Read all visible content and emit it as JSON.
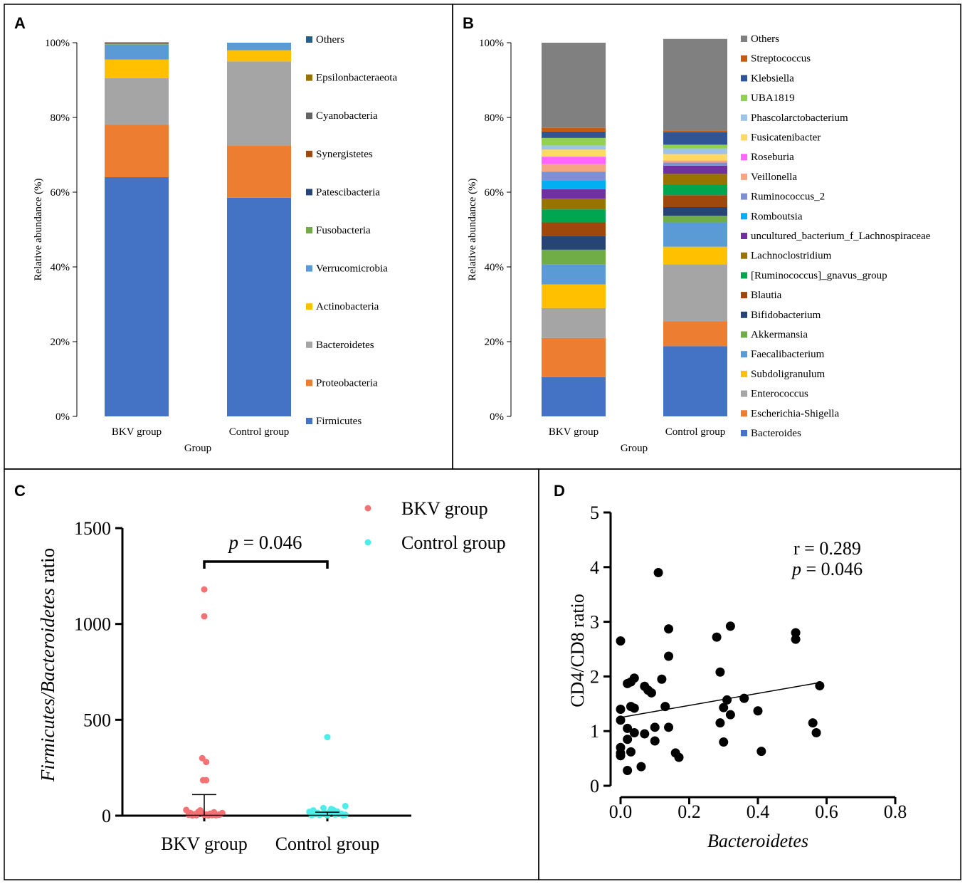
{
  "panels": [
    {
      "letter": "A"
    },
    {
      "letter": "B"
    },
    {
      "letter": "C"
    },
    {
      "letter": "D"
    }
  ],
  "chart_data": [
    {
      "id": "A",
      "type": "bar",
      "stacked": true,
      "percent_axis": true,
      "xlabel": "Group",
      "ylabel": "Relative abundance (%)",
      "ylim": [
        0,
        100
      ],
      "yticks": [
        0,
        20,
        40,
        60,
        80,
        100
      ],
      "yticklabels": [
        "0%",
        "20%",
        "40%",
        "60%",
        "80%",
        "100%"
      ],
      "categories": [
        "BKV group",
        "Control group"
      ],
      "legend_position": "right",
      "series": [
        {
          "name": "Firmicutes",
          "color": "#4472C4",
          "values": [
            64.0,
            58.5
          ]
        },
        {
          "name": "Proteobacteria",
          "color": "#ED7D31",
          "values": [
            14.0,
            14.0
          ]
        },
        {
          "name": "Bacteroidetes",
          "color": "#A5A5A5",
          "values": [
            12.5,
            22.5
          ]
        },
        {
          "name": "Actinobacteria",
          "color": "#FFC000",
          "values": [
            5.0,
            3.0
          ]
        },
        {
          "name": "Verrucomicrobia",
          "color": "#5B9BD5",
          "values": [
            4.0,
            2.0
          ]
        },
        {
          "name": "Fusobacteria",
          "color": "#70AD47",
          "values": [
            0.3,
            0.0
          ]
        },
        {
          "name": "Patescibacteria",
          "color": "#264478",
          "values": [
            0.1,
            0.0
          ]
        },
        {
          "name": "Synergistetes",
          "color": "#9E480E",
          "values": [
            0.1,
            0.0
          ]
        },
        {
          "name": "Cyanobacteria",
          "color": "#636363",
          "values": [
            0.1,
            0.0
          ]
        },
        {
          "name": "Epsilonbacteraeota",
          "color": "#997300",
          "values": [
            0.0,
            0.0
          ]
        },
        {
          "name": "Others",
          "color": "#255E91",
          "values": [
            0.0,
            0.0
          ]
        }
      ]
    },
    {
      "id": "B",
      "type": "bar",
      "stacked": true,
      "percent_axis": true,
      "xlabel": "Group",
      "ylabel": "Relative abundance (%)",
      "ylim": [
        0,
        100
      ],
      "yticks": [
        0,
        20,
        40,
        60,
        80,
        100
      ],
      "yticklabels": [
        "0%",
        "20%",
        "40%",
        "60%",
        "80%",
        "100%"
      ],
      "categories": [
        "BKV group",
        "Control group"
      ],
      "legend_position": "right",
      "series": [
        {
          "name": "Bacteroides",
          "color": "#4472C4",
          "values": [
            10.5,
            18.8
          ]
        },
        {
          "name": "Escherichia-Shigella",
          "color": "#ED7D31",
          "values": [
            10.5,
            6.7
          ]
        },
        {
          "name": "Enterococcus",
          "color": "#A5A5A5",
          "values": [
            8.0,
            15.2
          ]
        },
        {
          "name": "Subdoligranulum",
          "color": "#FFC000",
          "values": [
            6.3,
            4.7
          ]
        },
        {
          "name": "Faecalibacterium",
          "color": "#5B9BD5",
          "values": [
            5.3,
            6.5
          ]
        },
        {
          "name": "Akkermansia",
          "color": "#70AD47",
          "values": [
            4.0,
            1.8
          ]
        },
        {
          "name": "Bifidobacterium",
          "color": "#264478",
          "values": [
            3.6,
            2.3
          ]
        },
        {
          "name": "Blautia",
          "color": "#9E480E",
          "values": [
            3.7,
            3.2
          ]
        },
        {
          "name": "[Ruminococcus]_gnavus_group",
          "color": "#00A550",
          "values": [
            3.5,
            2.9
          ]
        },
        {
          "name": "Lachnoclostridium",
          "color": "#997300",
          "values": [
            2.9,
            2.8
          ]
        },
        {
          "name": "uncultured_bacterium_f_Lachnospiraceae",
          "color": "#7030A0",
          "values": [
            2.5,
            2.2
          ]
        },
        {
          "name": "Romboutsia",
          "color": "#00B0F0",
          "values": [
            2.4,
            0.0
          ]
        },
        {
          "name": "Ruminococcus_2",
          "color": "#7F8FD3",
          "values": [
            2.3,
            0.8
          ]
        },
        {
          "name": "Veillonella",
          "color": "#F4A582",
          "values": [
            2.0,
            0.6
          ]
        },
        {
          "name": "Roseburia",
          "color": "#FF66FF",
          "values": [
            2.0,
            0.0
          ]
        },
        {
          "name": "Fusicatenibacter",
          "color": "#FFD966",
          "values": [
            1.9,
            1.7
          ]
        },
        {
          "name": "Phascolarctobacterium",
          "color": "#9DC3E6",
          "values": [
            1.1,
            1.5
          ]
        },
        {
          "name": "UBA1819",
          "color": "#92D050",
          "values": [
            2.0,
            1.0
          ]
        },
        {
          "name": "Klebsiella",
          "color": "#2F5597",
          "values": [
            1.7,
            3.3
          ]
        },
        {
          "name": "Streptococcus",
          "color": "#C55A11",
          "values": [
            1.0,
            0.5
          ]
        },
        {
          "name": "Others",
          "color": "#808080",
          "values": [
            22.8,
            24.5
          ]
        }
      ]
    },
    {
      "id": "C",
      "type": "scatter",
      "xlabel": "",
      "ylabel_italic_part": "Firmicutes/Bacteroidetes",
      "ylabel_suffix": " ratio",
      "ylim": [
        0,
        1500
      ],
      "yticks": [
        0,
        500,
        1000,
        1500
      ],
      "yticklabels": [
        "0",
        "500",
        "1000",
        "1500"
      ],
      "categories": [
        "BKV group",
        "Control group"
      ],
      "annotation_p_label": "p",
      "annotation_p_value": " = 0.046",
      "legend_position": "top-right",
      "series": [
        {
          "name": "BKV group",
          "color": "#F47174",
          "mean": 2,
          "error_upper": 110,
          "points": [
            [
              -0.46,
              30
            ],
            [
              -0.36,
              15
            ],
            [
              -0.25,
              8
            ],
            [
              -0.15,
              20
            ],
            [
              -0.05,
              12
            ],
            [
              0.05,
              6
            ],
            [
              0.15,
              10
            ],
            [
              0.25,
              18
            ],
            [
              0.36,
              5
            ],
            [
              0.46,
              14
            ],
            [
              -0.4,
              5
            ],
            [
              -0.2,
              2
            ],
            [
              0.0,
              4
            ],
            [
              0.2,
              3
            ],
            [
              0.4,
              6
            ],
            [
              -0.3,
              1
            ],
            [
              0.3,
              2
            ],
            [
              0.1,
              1
            ],
            [
              -0.1,
              28
            ],
            [
              0.0,
              1180
            ],
            [
              0.0,
              1040
            ],
            [
              -0.05,
              300
            ],
            [
              0.05,
              280
            ],
            [
              -0.03,
              185
            ],
            [
              0.05,
              185
            ]
          ]
        },
        {
          "name": "Control group",
          "color": "#4DEEEA",
          "mean": 2,
          "error_upper": 18,
          "points": [
            [
              -0.46,
              20
            ],
            [
              -0.36,
              28
            ],
            [
              -0.25,
              15
            ],
            [
              -0.15,
              8
            ],
            [
              -0.05,
              12
            ],
            [
              0.05,
              18
            ],
            [
              0.15,
              30
            ],
            [
              0.25,
              22
            ],
            [
              0.36,
              10
            ],
            [
              0.46,
              5
            ],
            [
              -0.4,
              3
            ],
            [
              -0.2,
              4
            ],
            [
              0.0,
              2
            ],
            [
              0.2,
              6
            ],
            [
              0.4,
              2
            ],
            [
              -0.3,
              8
            ],
            [
              0.3,
              12
            ],
            [
              0.0,
              410
            ],
            [
              0.46,
              50
            ],
            [
              0.1,
              35
            ],
            [
              -0.1,
              40
            ]
          ]
        }
      ]
    },
    {
      "id": "D",
      "type": "scatter",
      "xlabel": "Bacteroidetes",
      "ylabel": "CD4/CD8 ratio",
      "xlim": [
        0,
        0.8
      ],
      "ylim": [
        0,
        5
      ],
      "xticks": [
        0,
        0.2,
        0.4,
        0.6,
        0.8
      ],
      "xticklabels": [
        "0.0",
        "0.2",
        "0.4",
        "0.6",
        "0.8"
      ],
      "yticks": [
        0,
        1,
        2,
        3,
        4,
        5
      ],
      "yticklabels": [
        "0",
        "1",
        "2",
        "3",
        "4",
        "5"
      ],
      "annotation_r": "r = 0.289",
      "annotation_p_label": "p",
      "annotation_p_value": " = 0.046",
      "regression": {
        "slope": 1.1,
        "intercept": 1.25
      },
      "points": [
        [
          0.0,
          2.65
        ],
        [
          0.0,
          1.4
        ],
        [
          0.0,
          1.2
        ],
        [
          0.0,
          0.7
        ],
        [
          0.0,
          0.6
        ],
        [
          0.0,
          0.55
        ],
        [
          0.02,
          1.87
        ],
        [
          0.03,
          1.45
        ],
        [
          0.02,
          1.05
        ],
        [
          0.02,
          0.85
        ],
        [
          0.03,
          0.62
        ],
        [
          0.02,
          0.28
        ],
        [
          0.03,
          1.9
        ],
        [
          0.04,
          1.97
        ],
        [
          0.04,
          1.42
        ],
        [
          0.04,
          0.97
        ],
        [
          0.06,
          0.35
        ],
        [
          0.07,
          1.82
        ],
        [
          0.08,
          1.75
        ],
        [
          0.09,
          1.7
        ],
        [
          0.07,
          0.95
        ],
        [
          0.1,
          1.07
        ],
        [
          0.1,
          0.82
        ],
        [
          0.11,
          3.9
        ],
        [
          0.12,
          1.95
        ],
        [
          0.13,
          1.45
        ],
        [
          0.14,
          2.87
        ],
        [
          0.14,
          2.37
        ],
        [
          0.14,
          1.07
        ],
        [
          0.16,
          0.6
        ],
        [
          0.17,
          0.52
        ],
        [
          0.28,
          2.72
        ],
        [
          0.29,
          2.08
        ],
        [
          0.29,
          1.15
        ],
        [
          0.3,
          1.43
        ],
        [
          0.31,
          1.57
        ],
        [
          0.3,
          0.8
        ],
        [
          0.32,
          1.3
        ],
        [
          0.32,
          2.92
        ],
        [
          0.36,
          1.6
        ],
        [
          0.4,
          1.37
        ],
        [
          0.41,
          0.63
        ],
        [
          0.51,
          2.68
        ],
        [
          0.51,
          2.8
        ],
        [
          0.56,
          1.15
        ],
        [
          0.57,
          0.97
        ],
        [
          0.58,
          1.83
        ]
      ]
    }
  ]
}
